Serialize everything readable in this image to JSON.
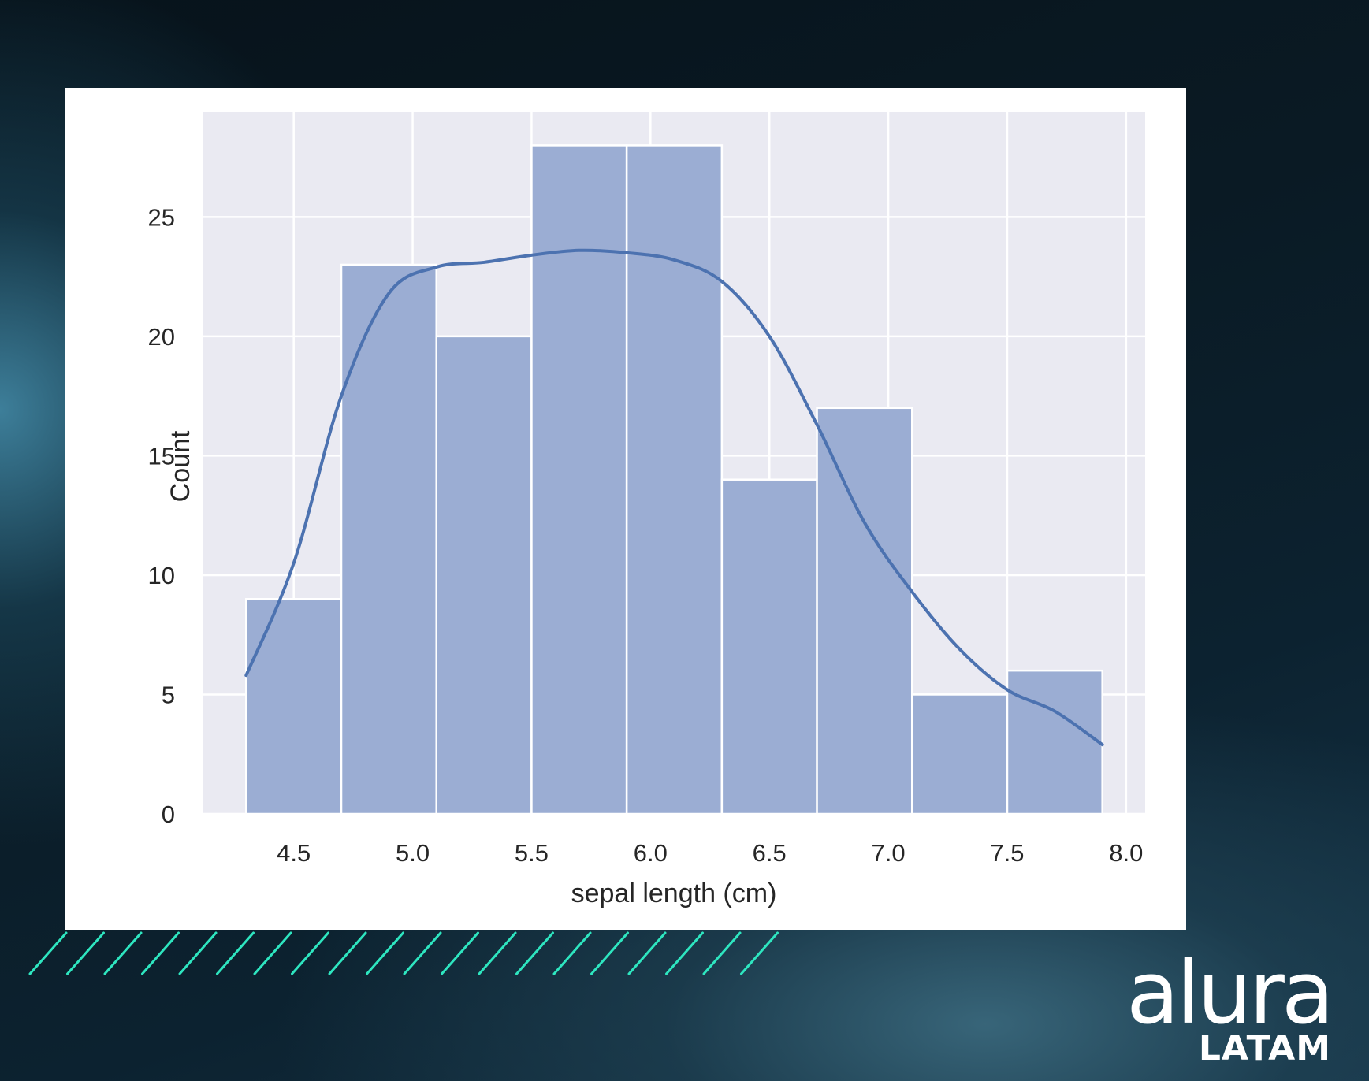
{
  "chart_data": {
    "type": "bar",
    "subtype": "histogram_with_kde",
    "title": "",
    "xlabel": "sepal length (cm)",
    "ylabel": "Count",
    "xlim": [
      4.12,
      8.08
    ],
    "ylim": [
      0,
      29.4
    ],
    "xticks": [
      "4.5",
      "5.0",
      "5.5",
      "6.0",
      "6.5",
      "7.0",
      "7.5",
      "8.0"
    ],
    "yticks": [
      "0",
      "5",
      "10",
      "15",
      "20",
      "25"
    ],
    "grid": true,
    "bins": [
      {
        "x0": 4.3,
        "x1": 4.7,
        "count": 9
      },
      {
        "x0": 4.7,
        "x1": 5.1,
        "count": 23
      },
      {
        "x0": 5.1,
        "x1": 5.5,
        "count": 20
      },
      {
        "x0": 5.5,
        "x1": 5.9,
        "count": 28
      },
      {
        "x0": 5.9,
        "x1": 6.3,
        "count": 28
      },
      {
        "x0": 6.3,
        "x1": 6.7,
        "count": 14
      },
      {
        "x0": 6.7,
        "x1": 7.1,
        "count": 17
      },
      {
        "x0": 7.1,
        "x1": 7.5,
        "count": 5
      },
      {
        "x0": 7.5,
        "x1": 7.9,
        "count": 6
      }
    ],
    "kde": {
      "x": [
        4.3,
        4.5,
        4.7,
        4.9,
        5.1,
        5.3,
        5.5,
        5.7,
        5.9,
        6.1,
        6.3,
        6.5,
        6.7,
        6.9,
        7.1,
        7.3,
        7.5,
        7.7,
        7.9
      ],
      "y": [
        5.8,
        10.5,
        17.5,
        21.8,
        22.9,
        23.1,
        23.4,
        23.6,
        23.5,
        23.2,
        22.3,
        20.0,
        16.3,
        12.2,
        9.3,
        6.9,
        5.2,
        4.3,
        2.9
      ]
    },
    "colors": {
      "bar_fill": "#9badd3",
      "bar_edge": "#ffffff",
      "kde_line": "#4c72b0",
      "plot_background": "#eaeaf2",
      "grid": "#ffffff",
      "text": "#262626"
    }
  },
  "branding": {
    "logo_word": "alura",
    "logo_sub": "LATAM",
    "stripe_color": "#2ee6c0"
  }
}
